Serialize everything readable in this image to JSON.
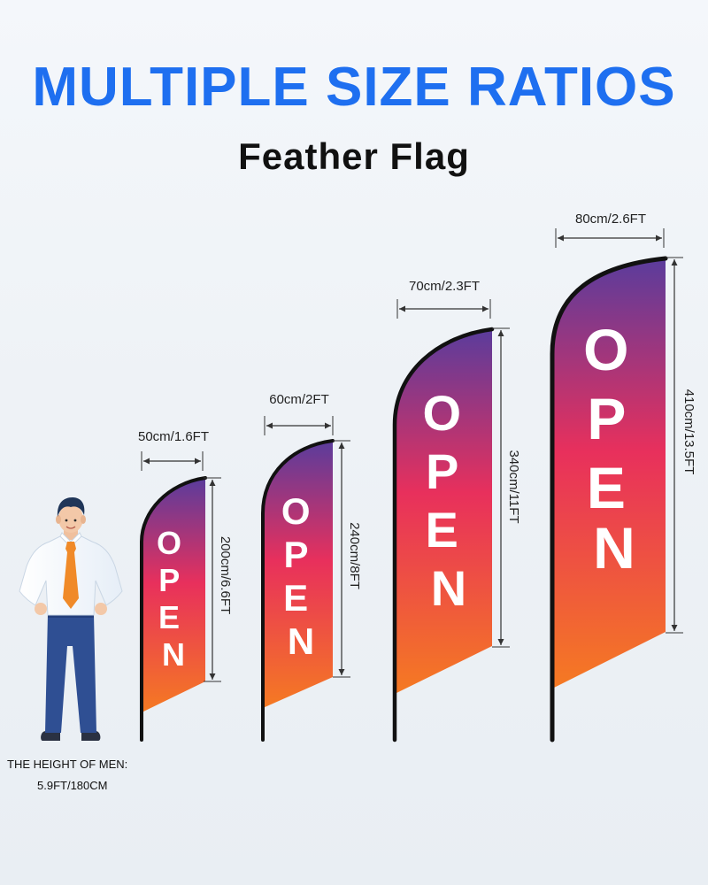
{
  "header": {
    "title": "MULTIPLE SIZE RATIOS",
    "subtitle": "Feather Flag"
  },
  "flags": [
    {
      "label": "OPEN",
      "width_label": "50cm/1.6FT",
      "height_label": "200cm/6.6FT"
    },
    {
      "label": "OPEN",
      "width_label": "60cm/2FT",
      "height_label": "240cm/8FT"
    },
    {
      "label": "OPEN",
      "width_label": "70cm/2.3FT",
      "height_label": "340cm/11FT"
    },
    {
      "label": "OPEN",
      "width_label": "80cm/2.6FT",
      "height_label": "410cm/13.5FT"
    }
  ],
  "person": {
    "caption_line1": "THE HEIGHT OF MEN:",
    "caption_line2": "5.9FT/180CM"
  },
  "colors": {
    "title": "#1e6ff0",
    "gradient_top": "#5a3c9c",
    "gradient_mid": "#e8305c",
    "gradient_bottom": "#f57a22"
  }
}
